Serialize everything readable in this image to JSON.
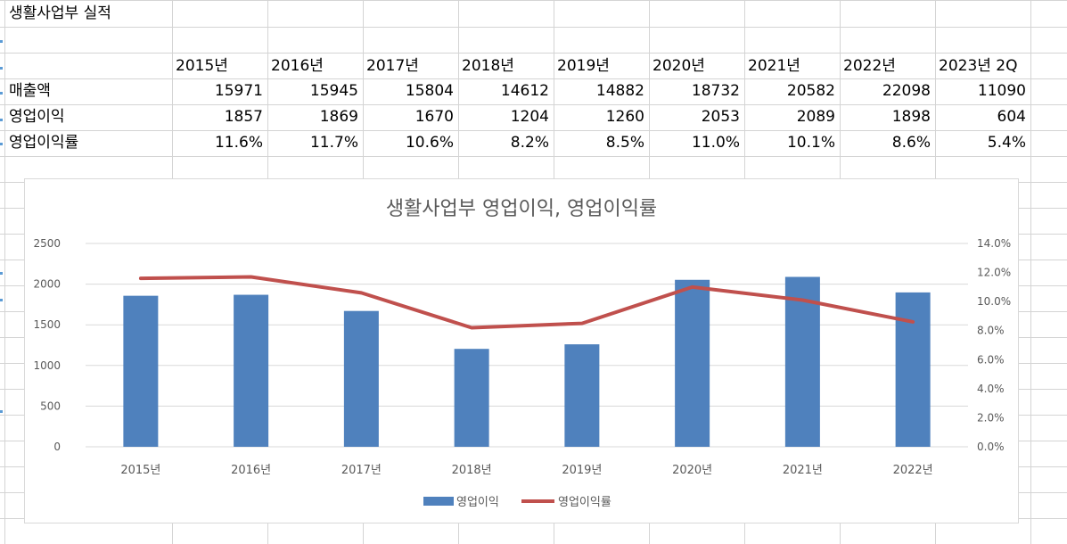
{
  "sheet": {
    "title": "생활사업부 실적",
    "header_years": [
      "2015년",
      "2016년",
      "2017년",
      "2018년",
      "2019년",
      "2020년",
      "2021년",
      "2022년",
      "2023년 2Q"
    ],
    "rows": [
      {
        "label": "매출액",
        "values": [
          "15971",
          "15945",
          "15804",
          "14612",
          "14882",
          "18732",
          "20582",
          "22098",
          "11090"
        ]
      },
      {
        "label": "영업이익",
        "values": [
          "1857",
          "1869",
          "1670",
          "1204",
          "1260",
          "2053",
          "2089",
          "1898",
          "604"
        ]
      },
      {
        "label": "영업이익률",
        "values": [
          "11.6%",
          "11.7%",
          "10.6%",
          "8.2%",
          "8.5%",
          "11.0%",
          "10.1%",
          "8.6%",
          "5.4%"
        ]
      }
    ]
  },
  "chart_data": {
    "type": "bar",
    "title": "생활사업부 영업이익, 영업이익률",
    "categories": [
      "2015년",
      "2016년",
      "2017년",
      "2018년",
      "2019년",
      "2020년",
      "2021년",
      "2022년"
    ],
    "series": [
      {
        "name": "영업이익",
        "type": "bar",
        "axis": "left",
        "color": "#4f81bd",
        "values": [
          1857,
          1869,
          1670,
          1204,
          1260,
          2053,
          2089,
          1898
        ]
      },
      {
        "name": "영업이익률",
        "type": "line",
        "axis": "right",
        "color": "#c0504d",
        "values": [
          11.6,
          11.7,
          10.6,
          8.2,
          8.5,
          11.0,
          10.1,
          8.6
        ]
      }
    ],
    "ylim_left": [
      0,
      2500
    ],
    "yticks_left": [
      "0",
      "500",
      "1000",
      "1500",
      "2000",
      "2500"
    ],
    "ylim_right": [
      0,
      14
    ],
    "yticks_right": [
      "0.0%",
      "2.0%",
      "4.0%",
      "6.0%",
      "8.0%",
      "10.0%",
      "12.0%",
      "14.0%"
    ],
    "grid": true,
    "legend_position": "bottom"
  }
}
